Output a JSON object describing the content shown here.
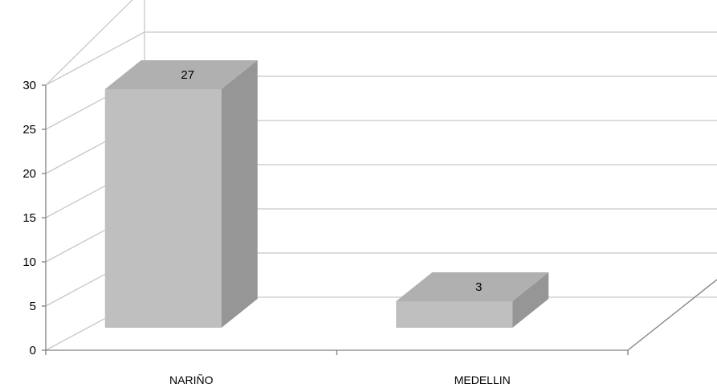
{
  "chart_data": {
    "type": "bar",
    "three_d": true,
    "categories": [
      "NARIÑO",
      "MEDELLIN"
    ],
    "values": [
      27,
      3
    ],
    "data_labels": [
      "27",
      "3"
    ],
    "title": "",
    "xlabel": "",
    "ylabel": "",
    "ylim": [
      0,
      30
    ],
    "y_ticks": [
      "0",
      "5",
      "10",
      "15",
      "20",
      "25",
      "30"
    ],
    "grid": true,
    "legend": "none",
    "colors": {
      "bar_front": "#bfbfbf",
      "bar_top": "#b0b0b0",
      "bar_side": "#969696",
      "gridline": "#c8c8c8",
      "axis": "#808080"
    }
  }
}
